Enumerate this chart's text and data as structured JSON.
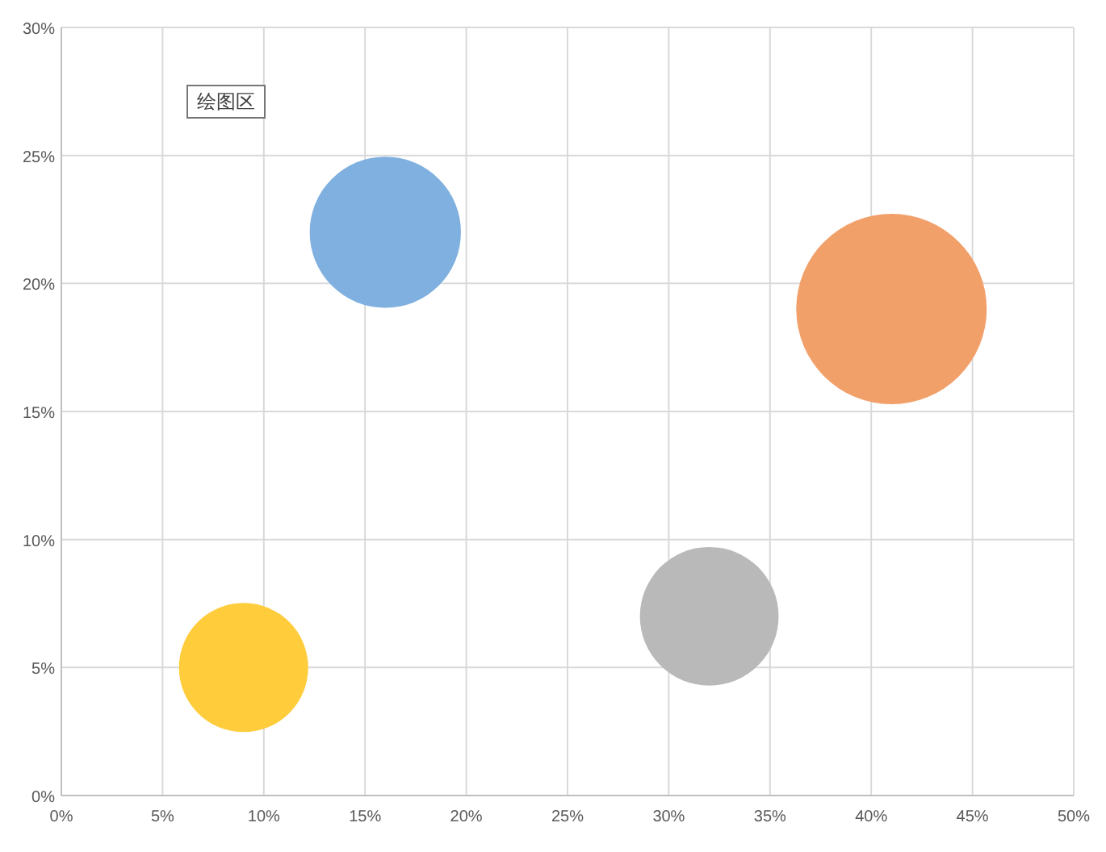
{
  "chart_data": {
    "type": "bubble",
    "x": [
      16,
      41,
      32,
      9
    ],
    "values": [
      22,
      19,
      7,
      5
    ],
    "sizes": [
      0.63,
      1,
      0.53,
      0.46
    ],
    "colors": [
      "#7fb0e0",
      "#f2a06a",
      "#b9b9b9",
      "#ffcc3c"
    ],
    "xlim": [
      0,
      50
    ],
    "ylim": [
      0,
      30
    ],
    "xticks": [
      {
        "value": 0,
        "label": "0%"
      },
      {
        "value": 5,
        "label": "5%"
      },
      {
        "value": 10,
        "label": "10%"
      },
      {
        "value": 15,
        "label": "15%"
      },
      {
        "value": 20,
        "label": "20%"
      },
      {
        "value": 25,
        "label": "25%"
      },
      {
        "value": 30,
        "label": "30%"
      },
      {
        "value": 35,
        "label": "35%"
      },
      {
        "value": 40,
        "label": "40%"
      },
      {
        "value": 45,
        "label": "45%"
      },
      {
        "value": 50,
        "label": "50%"
      }
    ],
    "yticks": [
      {
        "value": 0,
        "label": "0%"
      },
      {
        "value": 5,
        "label": "5%"
      },
      {
        "value": 10,
        "label": "10%"
      },
      {
        "value": 15,
        "label": "15%"
      },
      {
        "value": 20,
        "label": "20%"
      },
      {
        "value": 25,
        "label": "25%"
      },
      {
        "value": 30,
        "label": "30%"
      }
    ],
    "grid": true,
    "annotations": [
      "绘图区"
    ]
  }
}
